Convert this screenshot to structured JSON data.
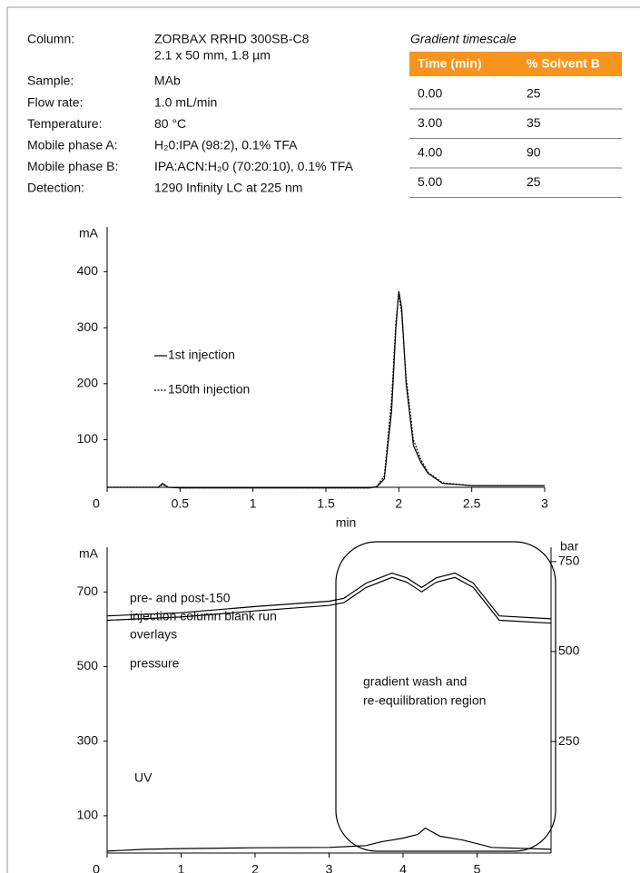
{
  "conditions": {
    "rows": [
      {
        "label": "Column:",
        "lines": [
          "ZORBAX RRHD 300SB-C8",
          "2.1 x 50 mm, 1.8 µm"
        ]
      },
      {
        "label": "Sample:",
        "lines": [
          "MAb"
        ]
      },
      {
        "label": "Flow rate:",
        "lines": [
          "1.0 mL/min"
        ]
      },
      {
        "label": "Temperature:",
        "lines": [
          "80 °C"
        ]
      },
      {
        "label": "Mobile phase A:",
        "lines": [
          "H₂0:IPA (98:2), 0.1% TFA"
        ]
      },
      {
        "label": "Mobile phase B:",
        "lines": [
          "IPA:ACN:H₂0 (70:20:10), 0.1% TFA"
        ]
      },
      {
        "label": "Detection:",
        "lines": [
          "1290 Infinity LC at 225 nm"
        ]
      }
    ]
  },
  "gradient_table": {
    "title": "Gradient timescale",
    "header_color": "#f7941d",
    "columns": [
      "Time (min)",
      "% Solvent B"
    ],
    "rows": [
      [
        "0.00",
        "25"
      ],
      [
        "3.00",
        "35"
      ],
      [
        "4.00",
        "90"
      ],
      [
        "5.00",
        "25"
      ]
    ]
  },
  "chart_data": [
    {
      "type": "line",
      "x_label": "min",
      "y_label": "mA",
      "xlim": [
        0,
        3
      ],
      "xticks": [
        0,
        0.5,
        1,
        1.5,
        2,
        2.5,
        3
      ],
      "ylim": [
        15,
        480
      ],
      "yticks": [
        100,
        200,
        300,
        400
      ],
      "x": [
        0,
        0.35,
        0.38,
        0.42,
        0.5,
        1.8,
        1.85,
        1.9,
        1.95,
        1.98,
        2.0,
        2.02,
        2.05,
        2.1,
        2.15,
        2.2,
        2.3,
        2.5,
        3
      ],
      "series": [
        {
          "name": "1st injection",
          "color": "#000000",
          "line_style": "solid",
          "values": [
            15,
            15,
            22,
            15,
            14,
            14,
            16,
            30,
            150,
            300,
            365,
            335,
            200,
            90,
            60,
            40,
            22,
            18,
            18
          ]
        },
        {
          "name": "150th injection",
          "color": "#000000",
          "line_style": "dotted",
          "values": [
            15,
            15,
            20,
            15,
            14,
            14,
            17,
            35,
            170,
            310,
            360,
            325,
            210,
            100,
            65,
            42,
            23,
            18,
            18
          ]
        }
      ]
    },
    {
      "type": "line",
      "y_label": "mA",
      "y2_label": "bar",
      "xlim": [
        0,
        6
      ],
      "xticks": [
        0,
        1,
        2,
        3,
        4,
        5
      ],
      "ylim": [
        0,
        820
      ],
      "yticks": [
        100,
        300,
        500,
        700
      ],
      "y2lim": [
        -60,
        790
      ],
      "y2ticks": [
        250,
        500,
        750
      ],
      "annotations": [
        "pre- and post-150",
        "injection column blank run",
        "overlays",
        "pressure",
        "gradient wash and",
        "re-equilibration region",
        "UV"
      ],
      "series": [
        {
          "axis": "y2",
          "color": "#000000",
          "x": [
            0,
            1,
            2,
            3,
            3.2,
            3.5,
            3.85,
            4.05,
            4.25,
            4.45,
            4.7,
            4.95,
            5.3,
            6
          ],
          "values": [
            599,
            608,
            625,
            640,
            648,
            690,
            718,
            705,
            678,
            705,
            718,
            690,
            599,
            591
          ]
        },
        {
          "axis": "y2",
          "color": "#000000",
          "x": [
            0,
            1,
            2,
            3,
            3.2,
            3.5,
            3.85,
            4.05,
            4.25,
            4.45,
            4.7,
            4.95,
            5.3,
            6
          ],
          "values": [
            587,
            596,
            613,
            628,
            636,
            678,
            706,
            693,
            666,
            693,
            706,
            678,
            587,
            579
          ]
        },
        {
          "color": "#000000",
          "x": [
            0,
            0.5,
            1,
            2,
            3,
            3.5,
            3.7,
            4,
            4.2,
            4.3,
            4.5,
            4.8,
            5.2,
            6
          ],
          "values": [
            5,
            10,
            12,
            14,
            15,
            20,
            30,
            40,
            50,
            67,
            45,
            35,
            15,
            10
          ]
        }
      ]
    }
  ]
}
